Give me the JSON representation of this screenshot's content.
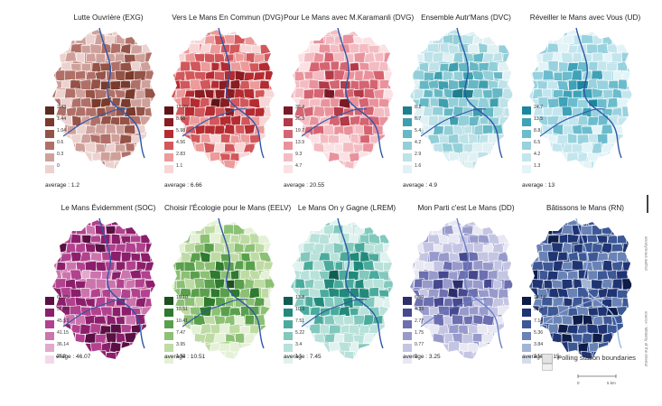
{
  "panels": [
    {
      "title": "Lutte Ouvrière (EXG)",
      "average": "average : 1.2",
      "legend": [
        "2.43",
        "1.44",
        "1.04",
        "0.6",
        "0.3",
        "0"
      ],
      "colors": [
        "#5b2a20",
        "#7a3a2c",
        "#955246",
        "#b07068",
        "#cfa09a",
        "#ecd2cf"
      ],
      "bg": "#c89088",
      "river": "#2c57a8"
    },
    {
      "title": "Vers Le Mans En Commun (DVG)",
      "average": "average : 6.66",
      "legend": [
        "12.23",
        "8.08",
        "5.98",
        "4.56",
        "2.83",
        "1.1"
      ],
      "colors": [
        "#5e1418",
        "#8a1c22",
        "#b42b31",
        "#d2575b",
        "#ec9a9a",
        "#f8d6d6"
      ],
      "bg": "#e38a8c",
      "river": "#2c57a8"
    },
    {
      "title": "Pour Le Mans avec M.Karamanli (DVG)",
      "average": "average : 20.55",
      "legend": [
        "36.4",
        "25.3",
        "19.7",
        "13.9",
        "9.3",
        "4.7"
      ],
      "colors": [
        "#7a1a26",
        "#b33a48",
        "#d56472",
        "#e9929c",
        "#f3bcc2",
        "#fbe1e4"
      ],
      "bg": "#f1b0b8",
      "river": "#2c57a8"
    },
    {
      "title": "Ensemble Autr'Mans (DVC)",
      "average": "average : 4.9",
      "legend": [
        "8.2",
        "6.7",
        "5.4",
        "4.2",
        "2.9",
        "1.6"
      ],
      "colors": [
        "#1f7f8f",
        "#3f9fae",
        "#66b8c5",
        "#93cfd8",
        "#bde2e8",
        "#e0f1f4"
      ],
      "bg": "#9fd3dc",
      "river": "#2c57a8"
    },
    {
      "title": "Réveiller le Mans avec Vous (UD)",
      "average": "average : 13",
      "legend": [
        "24.7",
        "13.5",
        "8.8",
        "6.5",
        "4.2",
        "1.3"
      ],
      "colors": [
        "#1b86a0",
        "#3fa2b8",
        "#6bbccd",
        "#98d2de",
        "#c3e6ee",
        "#e3f4f8"
      ],
      "bg": "#a8dbe7",
      "river": "#2c57a8"
    },
    {
      "title": "Le Mans Évidemment (SOC)",
      "average": "erage : 46.07",
      "legend": [
        "65.65",
        "51.44",
        "45.53",
        "41.15",
        "36.14",
        "26.5"
      ],
      "colors": [
        "#5a0f45",
        "#8c1f6c",
        "#b2428f",
        "#cc74ad",
        "#e2a9cd",
        "#f4d8ea"
      ],
      "bg": "#c9679f",
      "river": "#2c57a8"
    },
    {
      "title": "Choisir l'Écologie pour le Mans (EELV)",
      "average": "average : 10.51",
      "legend": [
        "19.10",
        "13.51",
        "10.41",
        "7.47",
        "3.95",
        "1.92"
      ],
      "colors": [
        "#1e4f1e",
        "#2f7a2f",
        "#5aa04c",
        "#8cc074",
        "#bedba4",
        "#e5f1d6"
      ],
      "bg": "#a3cf86",
      "river": "#2c57a8"
    },
    {
      "title": "Le Mans On y Gagne (LREM)",
      "average": "average : 7.45",
      "legend": [
        "13.8",
        "10.3",
        "7.51",
        "5.22",
        "3.4",
        "1.1"
      ],
      "colors": [
        "#0f5e54",
        "#228a7c",
        "#4aab9d",
        "#82c8bd",
        "#b8e1da",
        "#e0f2ef"
      ],
      "bg": "#88cdbf",
      "river": "#2c57a8"
    },
    {
      "title": "Mon Parti c'est Le Mans (DD)",
      "average": "average : 3.25",
      "legend": [
        "6.50",
        "4.33",
        "2.77",
        "1.75",
        "0.77",
        "0"
      ],
      "colors": [
        "#2c2f6b",
        "#46498f",
        "#6c6fb0",
        "#989acb",
        "#c4c5e3",
        "#e8e8f4"
      ],
      "bg": "#8d8fc6",
      "river": "#6a7fc8"
    },
    {
      "title": "Bâtissons le Mans (RN)",
      "average": "average : 8.15",
      "legend": [
        "14.14",
        "9.63",
        "7.14",
        "5.36",
        "3.84",
        "2.17"
      ],
      "colors": [
        "#0d1c48",
        "#1f3473",
        "#3d5896",
        "#6a83b6",
        "#a3b5d4",
        "#d4ddec"
      ],
      "bg": "#3a5692",
      "river": "#9fb6e0"
    }
  ],
  "legend_extra": {
    "polling": "Polling station boundaries",
    "scale_start": "0",
    "scale_end": "5 km"
  },
  "side_texts": [
    "anonymous author",
    "source : Ministry of the interior"
  ]
}
